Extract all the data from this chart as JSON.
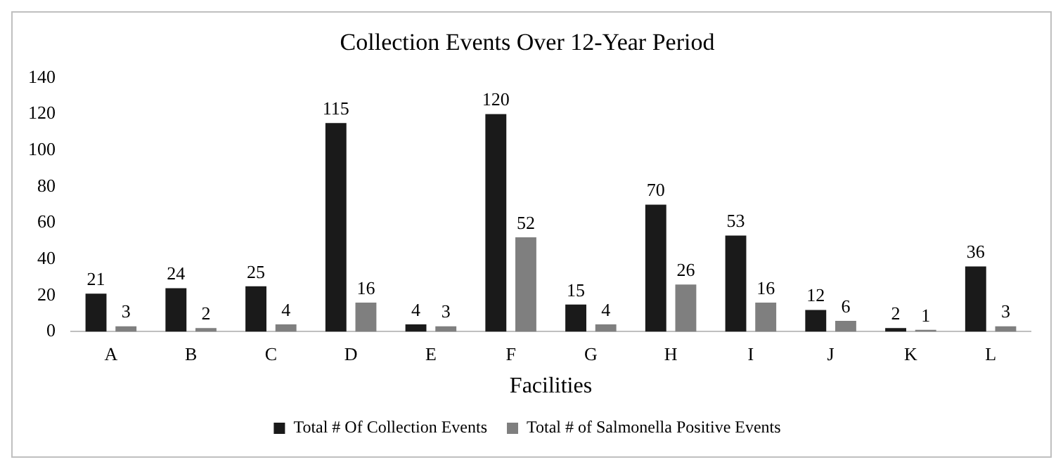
{
  "chart_data": {
    "type": "bar",
    "title": "Collection Events Over 12-Year Period",
    "xlabel": "Facilities",
    "categories": [
      "A",
      "B",
      "C",
      "D",
      "E",
      "F",
      "G",
      "H",
      "I",
      "J",
      "K",
      "L"
    ],
    "series": [
      {
        "name": "Total # Of Collection Events",
        "color": "#1a1a1a",
        "values": [
          21,
          24,
          25,
          115,
          4,
          120,
          15,
          70,
          53,
          12,
          2,
          36
        ]
      },
      {
        "name": "Total # of Salmonella Positive Events",
        "color": "#7f7f7f",
        "values": [
          3,
          2,
          4,
          16,
          3,
          52,
          4,
          26,
          16,
          6,
          1,
          3
        ]
      }
    ],
    "ylim": [
      0,
      140
    ],
    "yticks": [
      0,
      20,
      40,
      60,
      80,
      100,
      120,
      140
    ],
    "grid": false,
    "legend": "bottom",
    "data_labels": true
  }
}
